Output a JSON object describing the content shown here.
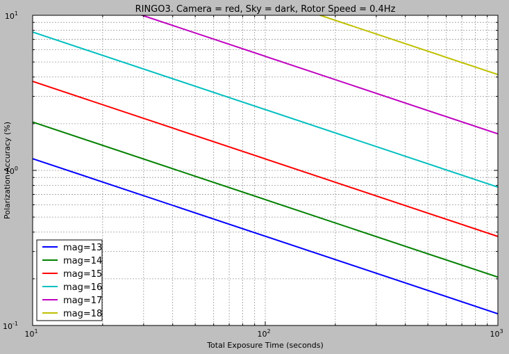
{
  "chart_data": {
    "type": "line",
    "title": "RINGO3.  Camera = red, Sky = dark, Rotor Speed = 0.4Hz",
    "xlabel": "Total Exposure Time (seconds)",
    "ylabel": "Polarization Accuracy (%)",
    "xscale": "log",
    "yscale": "log",
    "xlim": [
      10,
      1000
    ],
    "ylim": [
      0.1,
      10
    ],
    "grid": true,
    "legend_position": "lower-left",
    "x_major_ticks": [
      {
        "base": "10",
        "exp": "1"
      },
      {
        "base": "10",
        "exp": "2"
      },
      {
        "base": "10",
        "exp": "3"
      }
    ],
    "y_major_ticks": [
      {
        "base": "10",
        "exp": "-1"
      },
      {
        "base": "10",
        "exp": "0"
      },
      {
        "base": "10",
        "exp": "1"
      }
    ],
    "series": [
      {
        "name": "mag=13",
        "color": "#0000ff",
        "x": [
          10,
          1000
        ],
        "y": [
          1.19,
          0.119
        ]
      },
      {
        "name": "mag=14",
        "color": "#008000",
        "x": [
          10,
          1000
        ],
        "y": [
          2.05,
          0.205
        ]
      },
      {
        "name": "mag=15",
        "color": "#ff0000",
        "x": [
          10,
          1000
        ],
        "y": [
          3.75,
          0.375
        ]
      },
      {
        "name": "mag=16",
        "color": "#00bfbf",
        "x": [
          10,
          1000
        ],
        "y": [
          7.8,
          0.78
        ]
      },
      {
        "name": "mag=17",
        "color": "#bf00bf",
        "x": [
          10,
          1000
        ],
        "y": [
          17.2,
          1.72
        ]
      },
      {
        "name": "mag=18",
        "color": "#bfbf00",
        "x": [
          10,
          1000
        ],
        "y": [
          41.5,
          4.15
        ]
      }
    ]
  }
}
